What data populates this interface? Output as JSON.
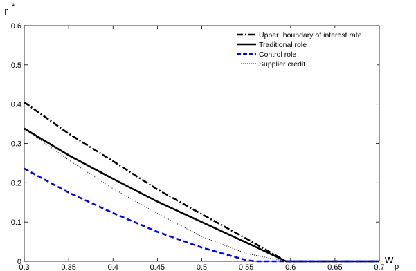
{
  "chart_data": {
    "type": "line",
    "title": "",
    "xlabel": "w",
    "xlabel_sub": "p",
    "ylabel": "r",
    "ylabel_sup": "*",
    "xlim": [
      0.3,
      0.7
    ],
    "ylim": [
      0,
      0.6
    ],
    "x_ticks": [
      "0.3",
      "0.35",
      "0.4",
      "0.45",
      "0.5",
      "0.55",
      "0.6",
      "0.65",
      "0.7"
    ],
    "y_ticks": [
      "0",
      "0.1",
      "0.2",
      "0.3",
      "0.4",
      "0.5",
      "0.6"
    ],
    "grid": false,
    "legend_position": "top-right",
    "series": [
      {
        "name": "Upper−boundary of interest rate",
        "color": "#000000",
        "dash": "dash-dot",
        "width": "thick",
        "x": [
          0.3,
          0.35,
          0.4,
          0.45,
          0.5,
          0.55,
          0.595,
          0.6,
          0.65,
          0.7
        ],
        "y": [
          0.405,
          0.325,
          0.255,
          0.183,
          0.12,
          0.058,
          0.0,
          0.0,
          0.0,
          0.0
        ]
      },
      {
        "name": "Traditional role",
        "color": "#000000",
        "dash": "solid",
        "width": "thick",
        "x": [
          0.3,
          0.35,
          0.4,
          0.45,
          0.5,
          0.55,
          0.595,
          0.6,
          0.65,
          0.7
        ],
        "y": [
          0.338,
          0.27,
          0.21,
          0.152,
          0.1,
          0.048,
          0.0,
          0.0,
          0.0,
          0.0
        ]
      },
      {
        "name": "Control role",
        "color": "#0000ff",
        "dash": "dashed",
        "width": "thick",
        "x": [
          0.3,
          0.35,
          0.4,
          0.45,
          0.5,
          0.55,
          0.56,
          0.6,
          0.65,
          0.7
        ],
        "y": [
          0.236,
          0.175,
          0.123,
          0.075,
          0.035,
          0.003,
          0.0,
          0.0,
          0.0,
          0.0
        ]
      },
      {
        "name": "Supplier credit",
        "color": "#000000",
        "dash": "dotted",
        "width": "thin",
        "x": [
          0.3,
          0.35,
          0.4,
          0.45,
          0.5,
          0.55,
          0.595,
          0.6,
          0.65,
          0.7
        ],
        "y": [
          0.338,
          0.258,
          0.185,
          0.122,
          0.063,
          0.02,
          0.0,
          0.0,
          0.0,
          0.0
        ]
      }
    ]
  }
}
